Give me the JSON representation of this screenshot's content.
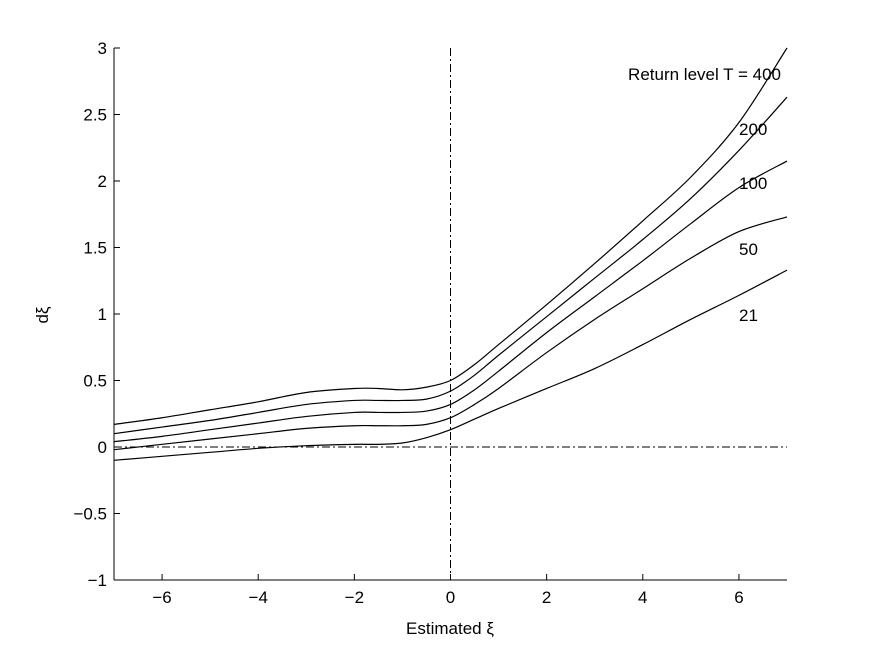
{
  "chart_data": {
    "type": "line",
    "xlabel": "Estimated ξ",
    "ylabel": "dξ",
    "xlim": [
      -7,
      7
    ],
    "ylim": [
      -1,
      3
    ],
    "xticks": [
      "−6",
      "−4",
      "−2",
      "0",
      "2",
      "4",
      "6"
    ],
    "xtick_values": [
      -6,
      -4,
      -2,
      0,
      2,
      4,
      6
    ],
    "yticks": [
      "−1",
      "−0.5",
      "0",
      "0.5",
      "1",
      "1.5",
      "2",
      "2.5",
      "3"
    ],
    "ytick_values": [
      -1,
      -0.5,
      0,
      0.5,
      1,
      1.5,
      2,
      2.5,
      3
    ],
    "grid": false,
    "reference_lines": {
      "horizontal_y": 0,
      "vertical_x": 0,
      "style": "dash-dot"
    },
    "x": [
      -7,
      -6,
      -5,
      -4,
      -3,
      -2,
      -1.5,
      -1,
      -0.5,
      0,
      0.5,
      1,
      2,
      3,
      4,
      5,
      6,
      7
    ],
    "series": [
      {
        "name": "400",
        "label": "Return level T = 400",
        "values": [
          0.17,
          0.22,
          0.28,
          0.34,
          0.41,
          0.44,
          0.44,
          0.43,
          0.45,
          0.5,
          0.62,
          0.77,
          1.07,
          1.38,
          1.7,
          2.03,
          2.44,
          3.0
        ]
      },
      {
        "name": "200",
        "label": "200",
        "values": [
          0.1,
          0.15,
          0.2,
          0.26,
          0.32,
          0.35,
          0.35,
          0.35,
          0.36,
          0.42,
          0.54,
          0.69,
          0.98,
          1.27,
          1.56,
          1.87,
          2.23,
          2.63
        ]
      },
      {
        "name": "100",
        "label": "100",
        "values": [
          0.04,
          0.08,
          0.13,
          0.18,
          0.23,
          0.26,
          0.26,
          0.26,
          0.27,
          0.32,
          0.43,
          0.57,
          0.86,
          1.13,
          1.4,
          1.68,
          1.95,
          2.15
        ]
      },
      {
        "name": "50",
        "label": "50",
        "values": [
          -0.02,
          0.02,
          0.06,
          0.1,
          0.14,
          0.16,
          0.16,
          0.16,
          0.17,
          0.22,
          0.32,
          0.44,
          0.71,
          0.96,
          1.19,
          1.42,
          1.62,
          1.73
        ]
      },
      {
        "name": "21",
        "label": "21",
        "values": [
          -0.1,
          -0.07,
          -0.04,
          -0.01,
          0.01,
          0.02,
          0.02,
          0.03,
          0.07,
          0.13,
          0.21,
          0.29,
          0.44,
          0.59,
          0.77,
          0.96,
          1.14,
          1.33
        ]
      }
    ]
  }
}
